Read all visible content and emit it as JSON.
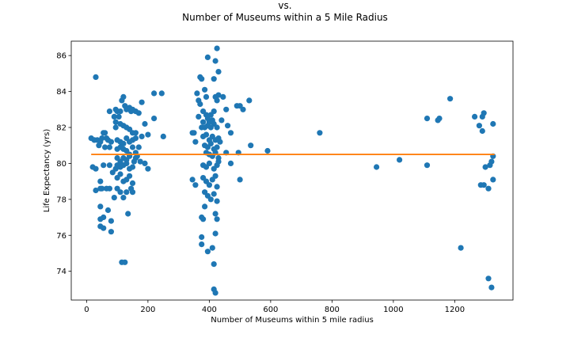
{
  "chart_data": {
    "type": "scatter",
    "title_lines": [
      "vs.",
      "Number of Museums within a 5 Mile Radius"
    ],
    "xlabel": "Number of Museums within 5 mile radius",
    "ylabel": "Life Expectancy (yrs)",
    "xlim": [
      -50,
      1390
    ],
    "ylim": [
      72.4,
      86.8
    ],
    "xticks": [
      0,
      200,
      400,
      600,
      800,
      1000,
      1200
    ],
    "yticks": [
      74,
      76,
      78,
      80,
      82,
      84,
      86
    ],
    "grid": false,
    "colors": {
      "points": "#1f77b4",
      "trend": "#ff7f0e"
    },
    "trend_line": {
      "x": [
        15,
        1330
      ],
      "y": [
        80.5,
        80.5
      ]
    },
    "series": [
      {
        "values": [
          [
            30,
            84.8
          ],
          [
            15,
            81.4
          ],
          [
            25,
            81.3
          ],
          [
            35,
            81.3
          ],
          [
            45,
            81.2
          ],
          [
            40,
            81.0
          ],
          [
            50,
            81.4
          ],
          [
            55,
            81.7
          ],
          [
            60,
            81.7
          ],
          [
            65,
            81.4
          ],
          [
            70,
            81.3
          ],
          [
            80,
            81.2
          ],
          [
            75,
            80.9
          ],
          [
            60,
            80.9
          ],
          [
            20,
            79.8
          ],
          [
            30,
            79.7
          ],
          [
            45,
            79.0
          ],
          [
            45,
            78.6
          ],
          [
            30,
            78.5
          ],
          [
            50,
            78.6
          ],
          [
            65,
            78.6
          ],
          [
            75,
            78.6
          ],
          [
            55,
            79.9
          ],
          [
            75,
            79.9
          ],
          [
            85,
            79.5
          ],
          [
            95,
            79.7
          ],
          [
            100,
            79.9
          ],
          [
            110,
            79.8
          ],
          [
            120,
            79.9
          ],
          [
            130,
            80.0
          ],
          [
            140,
            79.7
          ],
          [
            150,
            79.8
          ],
          [
            160,
            80.3
          ],
          [
            175,
            80.1
          ],
          [
            190,
            80.0
          ],
          [
            200,
            79.7
          ],
          [
            45,
            77.6
          ],
          [
            55,
            77.0
          ],
          [
            45,
            76.9
          ],
          [
            45,
            76.5
          ],
          [
            55,
            76.4
          ],
          [
            70,
            77.4
          ],
          [
            80,
            76.2
          ],
          [
            80,
            76.8
          ],
          [
            90,
            78.1
          ],
          [
            100,
            78.6
          ],
          [
            110,
            78.4
          ],
          [
            120,
            78.1
          ],
          [
            130,
            78.4
          ],
          [
            145,
            78.6
          ],
          [
            150,
            78.4
          ],
          [
            135,
            77.2
          ],
          [
            115,
            74.5
          ],
          [
            125,
            74.5
          ],
          [
            75,
            82.9
          ],
          [
            90,
            82.6
          ],
          [
            95,
            82.3
          ],
          [
            100,
            82.9
          ],
          [
            110,
            82.9
          ],
          [
            115,
            83.5
          ],
          [
            120,
            83.7
          ],
          [
            125,
            83.2
          ],
          [
            130,
            83.0
          ],
          [
            140,
            83.1
          ],
          [
            145,
            82.9
          ],
          [
            150,
            83.0
          ],
          [
            160,
            82.9
          ],
          [
            170,
            82.8
          ],
          [
            180,
            83.4
          ],
          [
            190,
            82.2
          ],
          [
            95,
            82.0
          ],
          [
            110,
            82.2
          ],
          [
            120,
            82.1
          ],
          [
            130,
            82.0
          ],
          [
            140,
            81.9
          ],
          [
            150,
            81.7
          ],
          [
            160,
            81.7
          ],
          [
            100,
            81.3
          ],
          [
            110,
            81.2
          ],
          [
            120,
            81.1
          ],
          [
            130,
            81.4
          ],
          [
            140,
            81.2
          ],
          [
            150,
            81.3
          ],
          [
            160,
            81.4
          ],
          [
            100,
            80.8
          ],
          [
            110,
            80.9
          ],
          [
            120,
            80.8
          ],
          [
            130,
            80.7
          ],
          [
            140,
            80.5
          ],
          [
            150,
            80.9
          ],
          [
            160,
            80.6
          ],
          [
            170,
            80.9
          ],
          [
            180,
            81.5
          ],
          [
            200,
            81.6
          ],
          [
            100,
            80.3
          ],
          [
            110,
            80.1
          ],
          [
            120,
            80.3
          ],
          [
            130,
            80.2
          ],
          [
            140,
            80.4
          ],
          [
            155,
            80.1
          ],
          [
            165,
            80.4
          ],
          [
            100,
            79.2
          ],
          [
            110,
            79.4
          ],
          [
            120,
            79.0
          ],
          [
            130,
            79.1
          ],
          [
            140,
            79.3
          ],
          [
            150,
            78.9
          ],
          [
            220,
            83.9
          ],
          [
            245,
            83.9
          ],
          [
            220,
            82.5
          ],
          [
            250,
            81.5
          ],
          [
            95,
            83.0
          ],
          [
            105,
            82.6
          ],
          [
            345,
            81.7
          ],
          [
            350,
            81.7
          ],
          [
            355,
            81.2
          ],
          [
            345,
            79.1
          ],
          [
            355,
            78.8
          ],
          [
            360,
            83.9
          ],
          [
            365,
            83.5
          ],
          [
            370,
            83.3
          ],
          [
            365,
            82.6
          ],
          [
            375,
            82.0
          ],
          [
            380,
            82.3
          ],
          [
            385,
            84.1
          ],
          [
            390,
            83.7
          ],
          [
            375,
            84.7
          ],
          [
            370,
            84.8
          ],
          [
            395,
            85.9
          ],
          [
            415,
            84.7
          ],
          [
            420,
            85.7
          ],
          [
            425,
            86.4
          ],
          [
            430,
            85.1
          ],
          [
            420,
            83.7
          ],
          [
            425,
            83.5
          ],
          [
            430,
            83.8
          ],
          [
            440,
            82.4
          ],
          [
            445,
            83.7
          ],
          [
            455,
            83.0
          ],
          [
            460,
            82.1
          ],
          [
            470,
            81.7
          ],
          [
            490,
            83.2
          ],
          [
            500,
            83.2
          ],
          [
            510,
            83.0
          ],
          [
            530,
            83.5
          ],
          [
            495,
            80.6
          ],
          [
            535,
            81.0
          ],
          [
            590,
            80.7
          ],
          [
            500,
            79.1
          ],
          [
            455,
            80.6
          ],
          [
            470,
            80.0
          ],
          [
            380,
            82.9
          ],
          [
            390,
            82.7
          ],
          [
            395,
            82.5
          ],
          [
            400,
            82.3
          ],
          [
            405,
            82.7
          ],
          [
            410,
            82.4
          ],
          [
            415,
            82.9
          ],
          [
            385,
            82.0
          ],
          [
            395,
            82.1
          ],
          [
            405,
            82.0
          ],
          [
            415,
            82.2
          ],
          [
            425,
            82.0
          ],
          [
            380,
            81.5
          ],
          [
            390,
            81.6
          ],
          [
            400,
            81.3
          ],
          [
            410,
            81.5
          ],
          [
            420,
            81.3
          ],
          [
            430,
            81.4
          ],
          [
            385,
            81.0
          ],
          [
            395,
            80.9
          ],
          [
            405,
            81.1
          ],
          [
            415,
            80.8
          ],
          [
            425,
            80.9
          ],
          [
            435,
            81.2
          ],
          [
            390,
            80.6
          ],
          [
            400,
            80.5
          ],
          [
            410,
            80.4
          ],
          [
            420,
            80.6
          ],
          [
            430,
            80.3
          ],
          [
            380,
            79.9
          ],
          [
            390,
            79.8
          ],
          [
            400,
            80.0
          ],
          [
            415,
            79.7
          ],
          [
            425,
            79.9
          ],
          [
            430,
            80.1
          ],
          [
            380,
            79.2
          ],
          [
            390,
            79.0
          ],
          [
            400,
            78.8
          ],
          [
            410,
            79.1
          ],
          [
            420,
            79.3
          ],
          [
            425,
            78.7
          ],
          [
            385,
            78.4
          ],
          [
            395,
            78.2
          ],
          [
            405,
            78.0
          ],
          [
            415,
            78.3
          ],
          [
            425,
            77.9
          ],
          [
            420,
            77.2
          ],
          [
            425,
            76.9
          ],
          [
            385,
            77.6
          ],
          [
            380,
            76.9
          ],
          [
            375,
            77.0
          ],
          [
            375,
            75.9
          ],
          [
            375,
            75.5
          ],
          [
            395,
            75.1
          ],
          [
            410,
            75.3
          ],
          [
            415,
            74.4
          ],
          [
            420,
            76.1
          ],
          [
            415,
            73.0
          ],
          [
            420,
            72.8
          ],
          [
            760,
            81.7
          ],
          [
            945,
            79.8
          ],
          [
            1020,
            80.2
          ],
          [
            1110,
            79.9
          ],
          [
            1110,
            82.5
          ],
          [
            1145,
            82.4
          ],
          [
            1150,
            82.5
          ],
          [
            1185,
            83.6
          ],
          [
            1220,
            75.3
          ],
          [
            1265,
            82.6
          ],
          [
            1280,
            82.1
          ],
          [
            1290,
            82.6
          ],
          [
            1295,
            82.8
          ],
          [
            1290,
            81.8
          ],
          [
            1285,
            78.8
          ],
          [
            1295,
            78.8
          ],
          [
            1300,
            79.8
          ],
          [
            1310,
            78.6
          ],
          [
            1315,
            79.9
          ],
          [
            1320,
            80.1
          ],
          [
            1325,
            80.4
          ],
          [
            1325,
            79.1
          ],
          [
            1325,
            82.2
          ],
          [
            1310,
            73.6
          ],
          [
            1320,
            73.1
          ]
        ]
      }
    ]
  }
}
